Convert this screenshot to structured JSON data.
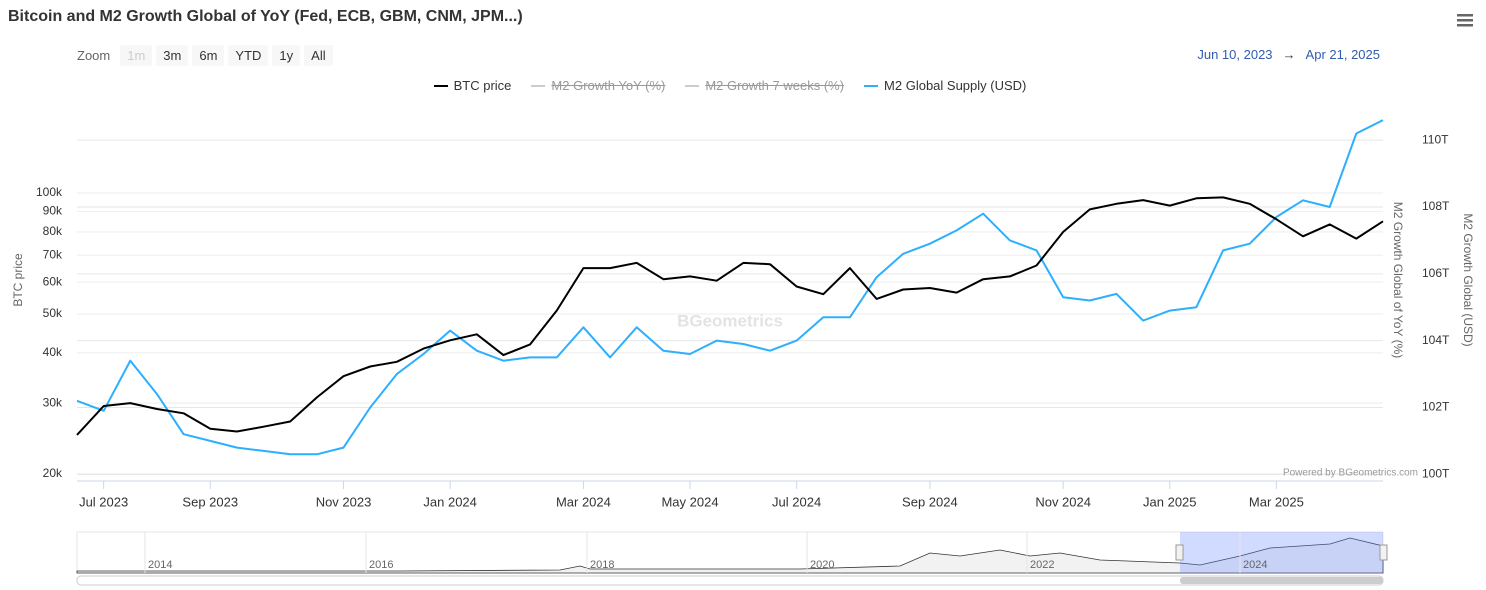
{
  "chart_data": {
    "type": "line",
    "title": "Bitcoin and M2 Growth Global of YoY (Fed, ECB, GBM, CNM, JPM...)",
    "zoom_label": "Zoom",
    "zoom_buttons": [
      "1m",
      "3m",
      "6m",
      "YTD",
      "1y",
      "All"
    ],
    "range_from": "Jun 10, 2023",
    "range_arrow": "→",
    "range_to": "Apr 21, 2025",
    "watermark": "BGeometrics",
    "credits": "Powered by BGeometrics.com",
    "y_label": "BTC price",
    "y_mid_label": "M2 Growth Global of YoY (%)",
    "y2_label": "M2 Growth Global (USD)",
    "log_y": true,
    "grid": true,
    "categories": [
      null,
      "Jul 2023",
      null,
      null,
      null,
      "Sep 2023",
      null,
      null,
      null,
      null,
      "Nov 2023",
      null,
      null,
      null,
      "Jan 2024",
      null,
      null,
      null,
      null,
      "Mar 2024",
      null,
      null,
      null,
      "May 2024",
      null,
      null,
      null,
      "Jul 2024",
      null,
      null,
      null,
      null,
      "Sep 2024",
      null,
      null,
      null,
      null,
      "Nov 2024",
      null,
      null,
      null,
      "Jan 2025",
      null,
      null,
      null,
      "Mar 2025",
      null,
      null,
      null,
      null
    ],
    "series": [
      {
        "name": "BTC price",
        "color": "#000000",
        "axis": "y",
        "values": [
          25000,
          29500,
          30000,
          29000,
          28300,
          25900,
          25500,
          26200,
          27000,
          31000,
          35000,
          37000,
          38000,
          41000,
          43000,
          44500,
          39500,
          42000,
          51000,
          65000,
          65000,
          67000,
          61000,
          62000,
          60500,
          67000,
          66500,
          58500,
          56000,
          65000,
          54500,
          57500,
          58000,
          56500,
          61000,
          62000,
          66000,
          80000,
          91000,
          94000,
          96000,
          93000,
          97000,
          97500,
          94000,
          86000,
          78000,
          83500,
          77000,
          85000
        ]
      },
      {
        "name": "M2 Global Supply (USD)",
        "color": "#2caffe",
        "axis": "y2",
        "values": [
          102.2,
          101.9,
          103.4,
          102.4,
          101.2,
          101.0,
          100.8,
          100.7,
          100.6,
          100.6,
          100.8,
          102.0,
          103.0,
          103.6,
          104.3,
          103.7,
          103.4,
          103.5,
          103.5,
          104.4,
          103.5,
          104.4,
          103.7,
          103.6,
          104.0,
          103.9,
          103.7,
          104.0,
          104.7,
          104.7,
          105.9,
          106.6,
          106.9,
          107.3,
          107.8,
          107.0,
          106.7,
          105.3,
          105.2,
          105.4,
          104.6,
          104.9,
          105.0,
          106.7,
          106.9,
          107.7,
          108.2,
          108.0,
          110.2,
          110.6
        ]
      }
    ],
    "hidden_series": [
      {
        "name": "M2 Growth YoY (%)",
        "color": "#cccccc"
      },
      {
        "name": "M2 Growth 7 weeks (%)",
        "color": "#cccccc"
      }
    ],
    "ylim": [
      19200,
      191000
    ],
    "yticks": [
      {
        "value": 20000,
        "label": "20k"
      },
      {
        "value": 30000,
        "label": "30k"
      },
      {
        "value": 40000,
        "label": "40k"
      },
      {
        "value": 50000,
        "label": "50k"
      },
      {
        "value": 60000,
        "label": "60k"
      },
      {
        "value": 70000,
        "label": "70k"
      },
      {
        "value": 80000,
        "label": "80k"
      },
      {
        "value": 90000,
        "label": "90k"
      },
      {
        "value": 100000,
        "label": "100k"
      }
    ],
    "y2lim": [
      99.8,
      111.8
    ],
    "y2ticks": [
      {
        "value": 100,
        "label": "100T"
      },
      {
        "value": 102,
        "label": "102T"
      },
      {
        "value": 104,
        "label": "104T"
      },
      {
        "value": 106,
        "label": "106T"
      },
      {
        "value": 108,
        "label": "108T"
      },
      {
        "value": 110,
        "label": "110T"
      }
    ],
    "navigator_labels": [
      "2014",
      "2016",
      "2018",
      "2020",
      "2022",
      "2024"
    ]
  }
}
